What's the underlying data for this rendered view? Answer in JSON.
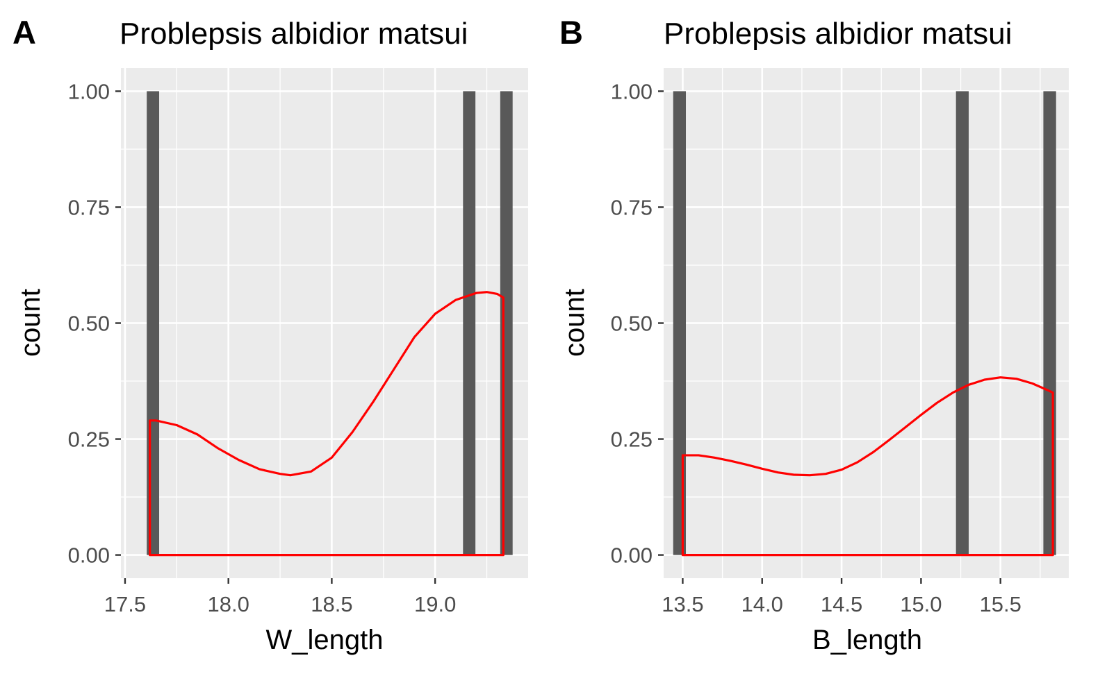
{
  "chart_data": [
    {
      "panel_tag": "A",
      "type": "bar",
      "title": "Problepsis albidior matsui",
      "xlabel": "W_length",
      "ylabel": "count",
      "xlim": [
        17.48,
        19.45
      ],
      "ylim": [
        -0.05,
        1.05
      ],
      "x_ticks": [
        "17.5",
        "18.0",
        "18.5",
        "19.0"
      ],
      "x_tick_values": [
        17.5,
        18.0,
        18.5,
        19.0
      ],
      "y_ticks": [
        "0.00",
        "0.25",
        "0.50",
        "0.75",
        "1.00"
      ],
      "y_tick_values": [
        0,
        0.25,
        0.5,
        0.75,
        1.0
      ],
      "grid": true,
      "bars": [
        {
          "x0": 17.605,
          "x1": 17.665,
          "count": 1
        },
        {
          "x0": 19.135,
          "x1": 19.195,
          "count": 1
        },
        {
          "x0": 19.315,
          "x1": 19.375,
          "count": 1
        }
      ],
      "density": {
        "x": [
          17.62,
          17.65,
          17.75,
          17.85,
          17.95,
          18.05,
          18.15,
          18.25,
          18.3,
          18.4,
          18.5,
          18.6,
          18.7,
          18.8,
          18.9,
          19.0,
          19.1,
          19.2,
          19.25,
          19.3,
          19.33
        ],
        "y": [
          0.29,
          0.29,
          0.28,
          0.26,
          0.23,
          0.205,
          0.185,
          0.175,
          0.172,
          0.18,
          0.21,
          0.265,
          0.33,
          0.4,
          0.47,
          0.52,
          0.55,
          0.565,
          0.567,
          0.563,
          0.555
        ]
      },
      "bar_color": "#595959",
      "density_color": "#ff0000"
    },
    {
      "panel_tag": "B",
      "type": "bar",
      "title": "Problepsis albidior matsui",
      "xlabel": "B_length",
      "ylabel": "count",
      "xlim": [
        13.38,
        15.93
      ],
      "ylim": [
        -0.05,
        1.05
      ],
      "x_ticks": [
        "13.5",
        "14.0",
        "14.5",
        "15.0",
        "15.5"
      ],
      "x_tick_values": [
        13.5,
        14.0,
        14.5,
        15.0,
        15.5
      ],
      "y_ticks": [
        "0.00",
        "0.25",
        "0.50",
        "0.75",
        "1.00"
      ],
      "y_tick_values": [
        0,
        0.25,
        0.5,
        0.75,
        1.0
      ],
      "grid": true,
      "bars": [
        {
          "x0": 13.44,
          "x1": 13.52,
          "count": 1
        },
        {
          "x0": 15.22,
          "x1": 15.3,
          "count": 1
        },
        {
          "x0": 15.77,
          "x1": 15.85,
          "count": 1
        }
      ],
      "density": {
        "x": [
          13.5,
          13.6,
          13.7,
          13.8,
          13.9,
          14.0,
          14.1,
          14.2,
          14.3,
          14.4,
          14.5,
          14.6,
          14.7,
          14.8,
          14.9,
          15.0,
          15.1,
          15.2,
          15.3,
          15.4,
          15.5,
          15.6,
          15.7,
          15.8,
          15.83
        ],
        "y": [
          0.215,
          0.215,
          0.21,
          0.203,
          0.195,
          0.186,
          0.178,
          0.173,
          0.172,
          0.175,
          0.184,
          0.2,
          0.222,
          0.248,
          0.275,
          0.302,
          0.328,
          0.35,
          0.367,
          0.378,
          0.383,
          0.38,
          0.37,
          0.355,
          0.35
        ]
      },
      "bar_color": "#595959",
      "density_color": "#ff0000"
    }
  ]
}
